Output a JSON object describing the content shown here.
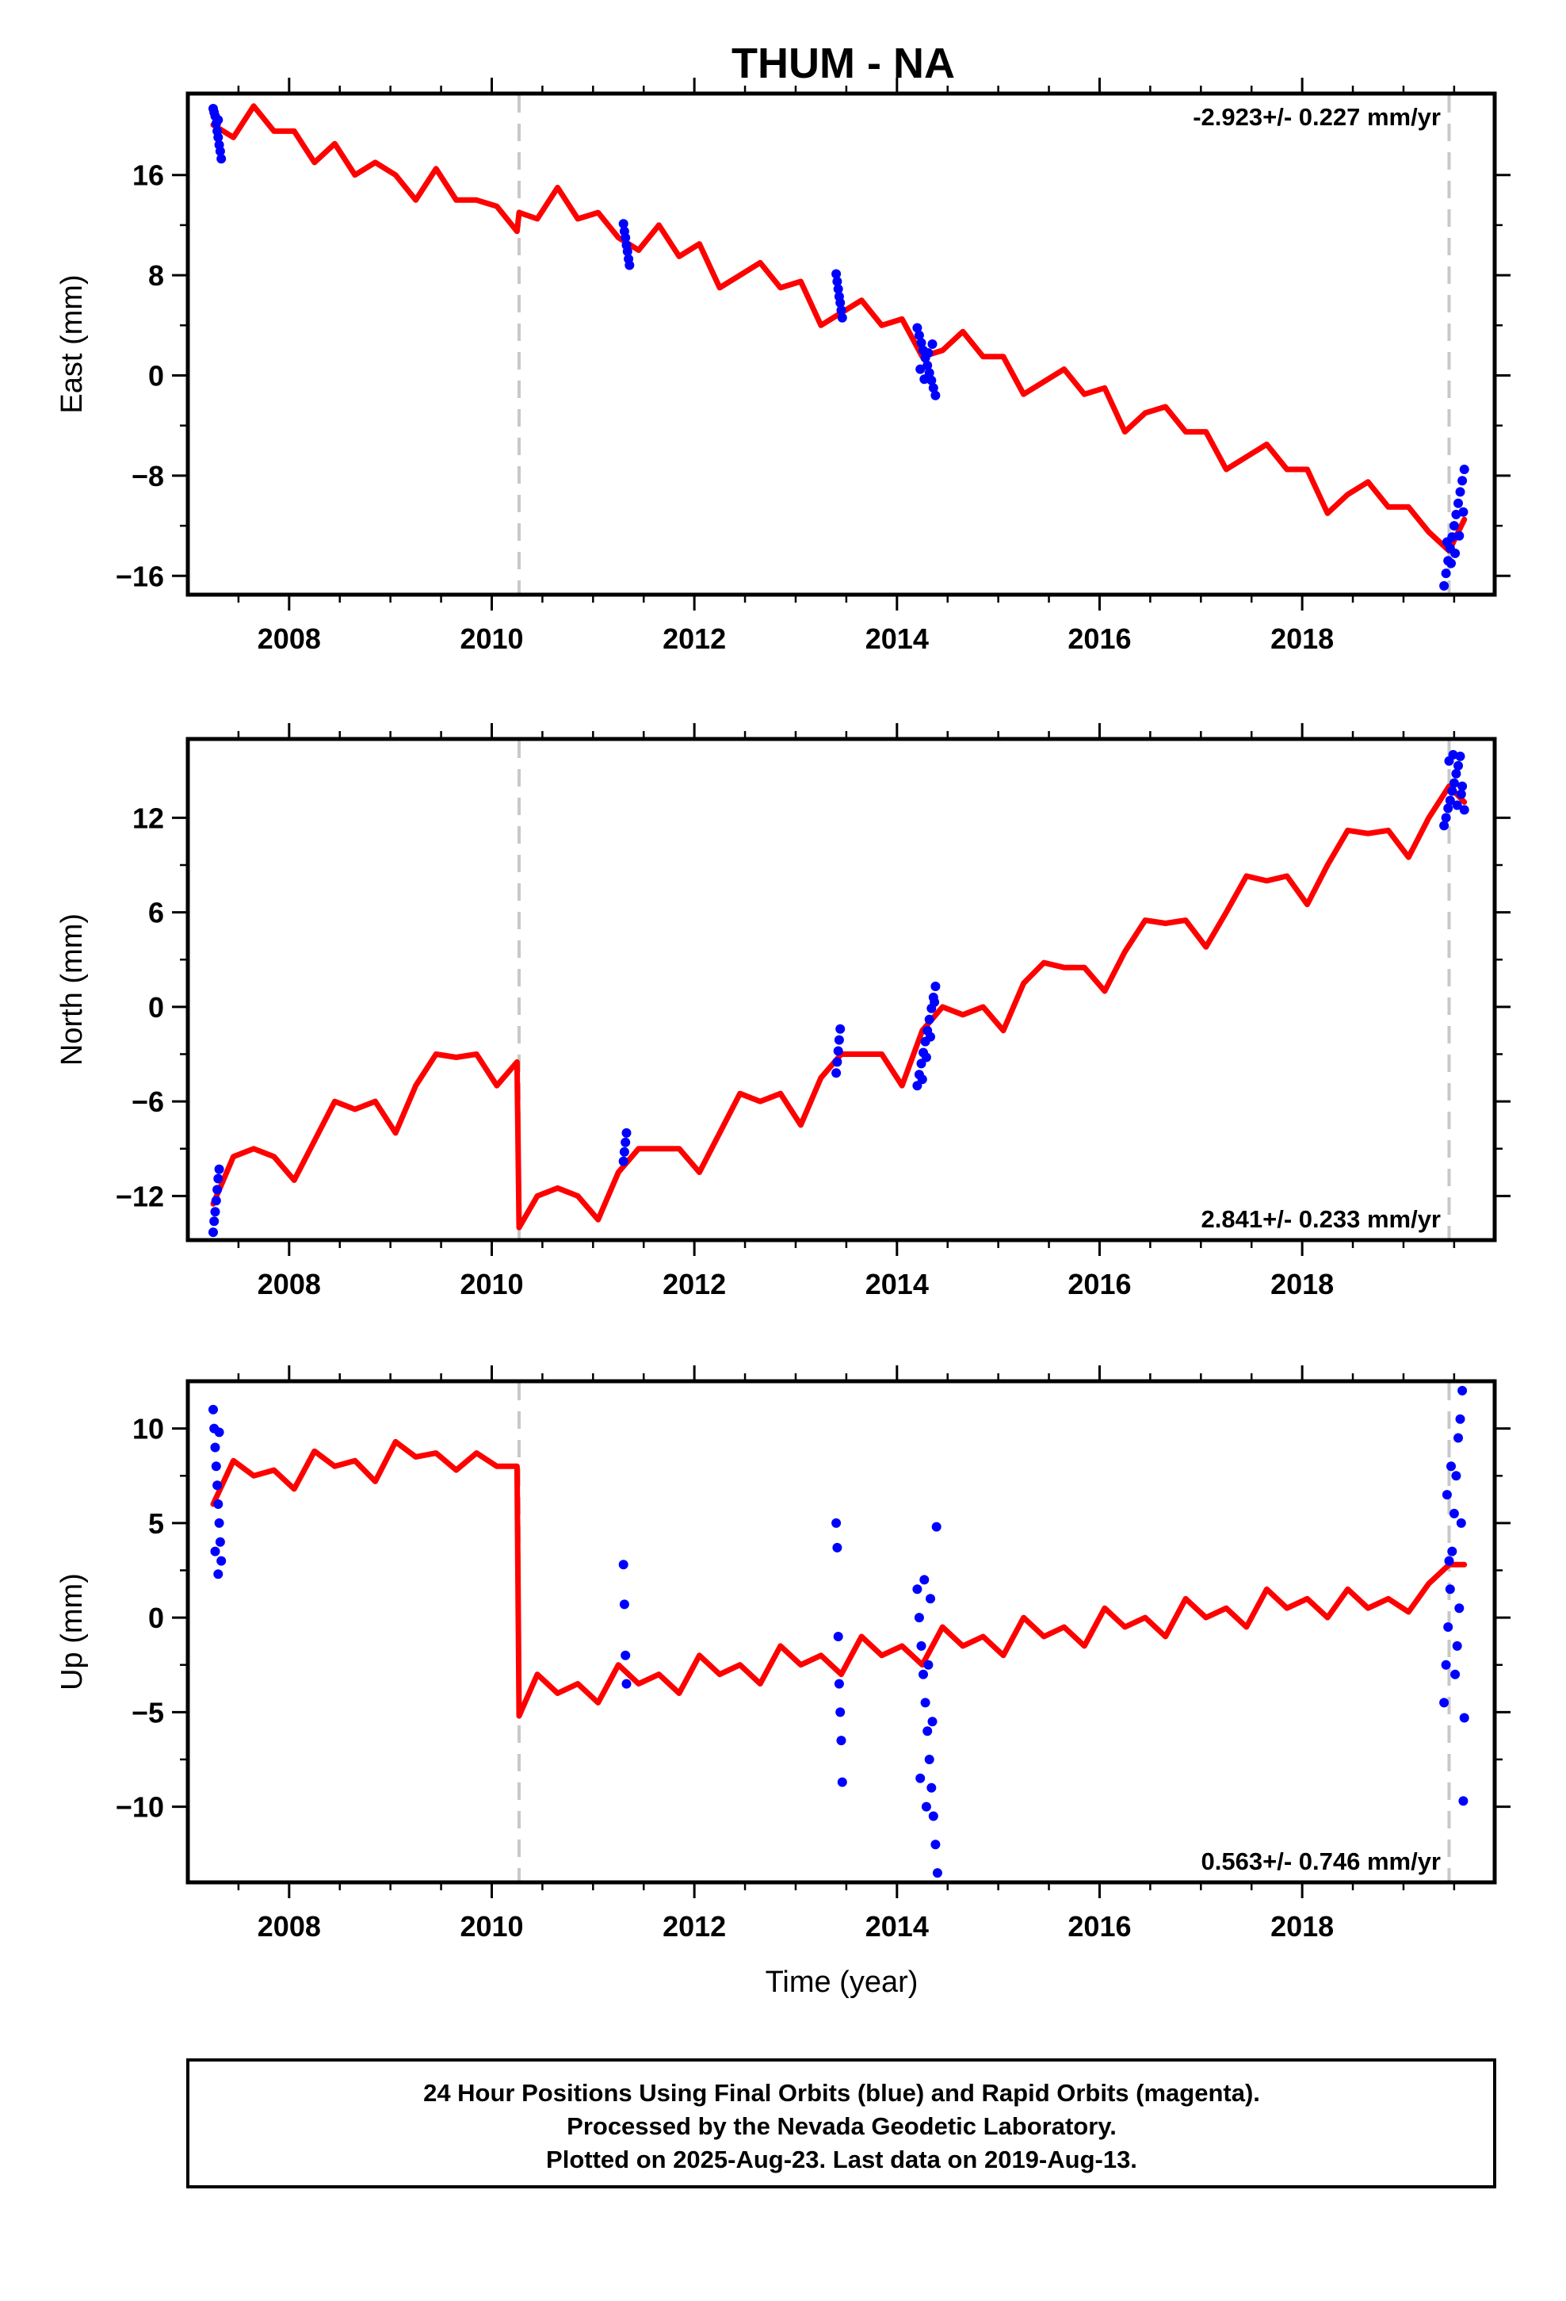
{
  "title": "THUM - NA",
  "colors": {
    "model": "#ff0000",
    "final_orbits": "#0000ff",
    "offset_line": "#c8c8c8",
    "frame": "#000000"
  },
  "footer": {
    "line1": "24 Hour Positions Using Final Orbits (blue) and Rapid Orbits (magenta).",
    "line2": "Processed by the Nevada Geodetic Laboratory.",
    "line3": "Plotted on 2025-Aug-23. Last data on 2019-Aug-13."
  },
  "chart_data": [
    {
      "type": "scatter",
      "component": "east",
      "ylabel": "East (mm)",
      "xlabel": "",
      "rate_label": "-2.923+/- 0.227 mm/yr",
      "rate_position": "top-right",
      "xlim": [
        2007.0,
        2019.9
      ],
      "ylim": [
        -17.5,
        22.5
      ],
      "xticks": [
        2008,
        2010,
        2012,
        2014,
        2016,
        2018
      ],
      "xtick_labels": [
        "2008",
        "2010",
        "2012",
        "2014",
        "2016",
        "2018"
      ],
      "yticks": [
        -16,
        -8,
        0,
        8,
        16
      ],
      "ytick_labels": [
        "−16",
        "−8",
        "0",
        "8",
        "16"
      ],
      "offset_epochs": [
        2010.27,
        2019.45
      ],
      "model": {
        "x": [
          2007.25,
          2007.45,
          2007.65,
          2007.85,
          2008.05,
          2008.25,
          2008.45,
          2008.65,
          2008.85,
          2009.05,
          2009.25,
          2009.45,
          2009.65,
          2009.85,
          2010.05,
          2010.25,
          2010.27,
          2010.45,
          2010.65,
          2010.85,
          2011.05,
          2011.25,
          2011.45,
          2011.65,
          2011.85,
          2012.05,
          2012.25,
          2012.45,
          2012.65,
          2012.85,
          2013.05,
          2013.25,
          2013.45,
          2013.65,
          2013.85,
          2014.05,
          2014.25,
          2014.45,
          2014.65,
          2014.85,
          2015.05,
          2015.25,
          2015.45,
          2015.65,
          2015.85,
          2016.05,
          2016.25,
          2016.45,
          2016.65,
          2016.85,
          2017.05,
          2017.25,
          2017.45,
          2017.65,
          2017.85,
          2018.05,
          2018.25,
          2018.45,
          2018.65,
          2018.85,
          2019.05,
          2019.25,
          2019.45,
          2019.6
        ],
        "y": [
          20.0,
          19.0,
          21.5,
          19.5,
          19.5,
          17.0,
          18.5,
          16.0,
          17.0,
          16.0,
          14.0,
          16.5,
          14.0,
          14.0,
          13.5,
          11.5,
          13.0,
          12.5,
          15.0,
          12.5,
          13.0,
          11.0,
          10.0,
          12.0,
          9.5,
          10.5,
          7.0,
          8.0,
          9.0,
          7.0,
          7.5,
          4.0,
          5.0,
          6.0,
          4.0,
          4.5,
          1.5,
          2.0,
          3.5,
          1.5,
          1.5,
          -1.5,
          -0.5,
          0.5,
          -1.5,
          -1.0,
          -4.5,
          -3.0,
          -2.5,
          -4.5,
          -4.5,
          -7.5,
          -6.5,
          -5.5,
          -7.5,
          -7.5,
          -11.0,
          -9.5,
          -8.5,
          -10.5,
          -10.5,
          -12.5,
          -14.0,
          -11.5
        ]
      },
      "points": [
        [
          2007.25,
          21.3
        ],
        [
          2007.27,
          20.7
        ],
        [
          2007.28,
          20.1
        ],
        [
          2007.29,
          19.5
        ],
        [
          2007.3,
          19.0
        ],
        [
          2007.31,
          18.4
        ],
        [
          2007.32,
          17.9
        ],
        [
          2007.33,
          17.3
        ],
        [
          2007.26,
          21.0
        ],
        [
          2007.3,
          20.4
        ],
        [
          2011.3,
          12.1
        ],
        [
          2011.31,
          11.5
        ],
        [
          2011.32,
          11.0
        ],
        [
          2011.33,
          10.4
        ],
        [
          2011.34,
          9.9
        ],
        [
          2011.35,
          9.3
        ],
        [
          2011.36,
          8.8
        ],
        [
          2013.4,
          8.1
        ],
        [
          2013.41,
          7.5
        ],
        [
          2013.42,
          6.9
        ],
        [
          2013.43,
          6.3
        ],
        [
          2013.44,
          5.8
        ],
        [
          2013.45,
          5.2
        ],
        [
          2013.46,
          4.6
        ],
        [
          2014.2,
          3.8
        ],
        [
          2014.22,
          3.2
        ],
        [
          2014.24,
          2.6
        ],
        [
          2014.26,
          2.0
        ],
        [
          2014.28,
          1.4
        ],
        [
          2014.3,
          0.8
        ],
        [
          2014.32,
          0.2
        ],
        [
          2014.34,
          -0.4
        ],
        [
          2014.36,
          -1.0
        ],
        [
          2014.38,
          -1.6
        ],
        [
          2014.23,
          0.5
        ],
        [
          2014.27,
          -0.3
        ],
        [
          2014.31,
          1.8
        ],
        [
          2014.35,
          2.5
        ],
        [
          2019.4,
          -16.8
        ],
        [
          2019.42,
          -15.8
        ],
        [
          2019.44,
          -14.8
        ],
        [
          2019.46,
          -13.8
        ],
        [
          2019.48,
          -12.9
        ],
        [
          2019.5,
          -12.0
        ],
        [
          2019.52,
          -11.1
        ],
        [
          2019.54,
          -10.2
        ],
        [
          2019.56,
          -9.3
        ],
        [
          2019.58,
          -8.4
        ],
        [
          2019.6,
          -7.5
        ],
        [
          2019.43,
          -13.3
        ],
        [
          2019.47,
          -15.0
        ],
        [
          2019.51,
          -14.2
        ],
        [
          2019.55,
          -12.8
        ],
        [
          2019.59,
          -10.9
        ]
      ]
    },
    {
      "type": "scatter",
      "component": "north",
      "ylabel": "North (mm)",
      "xlabel": "",
      "rate_label": "2.841+/- 0.233 mm/yr",
      "rate_position": "bottom-right",
      "xlim": [
        2007.0,
        2019.9
      ],
      "ylim": [
        -14.8,
        17.0
      ],
      "xticks": [
        2008,
        2010,
        2012,
        2014,
        2016,
        2018
      ],
      "xtick_labels": [
        "2008",
        "2010",
        "2012",
        "2014",
        "2016",
        "2018"
      ],
      "yticks": [
        -12,
        -6,
        0,
        6,
        12
      ],
      "ytick_labels": [
        "−12",
        "−6",
        "0",
        "6",
        "12"
      ],
      "offset_epochs": [
        2010.27,
        2019.45
      ],
      "model": {
        "x": [
          2007.25,
          2007.45,
          2007.65,
          2007.85,
          2008.05,
          2008.25,
          2008.45,
          2008.65,
          2008.85,
          2009.05,
          2009.25,
          2009.45,
          2009.65,
          2009.85,
          2010.05,
          2010.25,
          2010.27,
          2010.45,
          2010.65,
          2010.85,
          2011.05,
          2011.25,
          2011.45,
          2011.65,
          2011.85,
          2012.05,
          2012.25,
          2012.45,
          2012.65,
          2012.85,
          2013.05,
          2013.25,
          2013.45,
          2013.65,
          2013.85,
          2014.05,
          2014.25,
          2014.45,
          2014.65,
          2014.85,
          2015.05,
          2015.25,
          2015.45,
          2015.65,
          2015.85,
          2016.05,
          2016.25,
          2016.45,
          2016.65,
          2016.85,
          2017.05,
          2017.25,
          2017.45,
          2017.65,
          2017.85,
          2018.05,
          2018.25,
          2018.45,
          2018.65,
          2018.85,
          2019.05,
          2019.25,
          2019.45,
          2019.6
        ],
        "y": [
          -12.5,
          -9.5,
          -9.0,
          -9.5,
          -11.0,
          -8.5,
          -6.0,
          -6.5,
          -6.0,
          -8.0,
          -5.0,
          -3.0,
          -3.2,
          -3.0,
          -5.0,
          -3.5,
          -14.0,
          -12.0,
          -11.5,
          -12.0,
          -13.5,
          -10.5,
          -9.0,
          -9.0,
          -9.0,
          -10.5,
          -8.0,
          -5.5,
          -6.0,
          -5.5,
          -7.5,
          -4.5,
          -3.0,
          -3.0,
          -3.0,
          -5.0,
          -1.5,
          0.0,
          -0.5,
          0.0,
          -1.5,
          1.5,
          2.8,
          2.5,
          2.5,
          1.0,
          3.5,
          5.5,
          5.3,
          5.5,
          3.8,
          6.0,
          8.3,
          8.0,
          8.3,
          6.5,
          9.0,
          11.2,
          11.0,
          11.2,
          9.5,
          12.0,
          14.0,
          13.0
        ]
      },
      "points": [
        [
          2007.25,
          -14.3
        ],
        [
          2007.26,
          -13.6
        ],
        [
          2007.27,
          -13.0
        ],
        [
          2007.28,
          -12.3
        ],
        [
          2007.29,
          -11.6
        ],
        [
          2007.3,
          -10.9
        ],
        [
          2007.31,
          -10.3
        ],
        [
          2011.3,
          -9.8
        ],
        [
          2011.31,
          -9.2
        ],
        [
          2011.32,
          -8.6
        ],
        [
          2011.33,
          -8.0
        ],
        [
          2013.4,
          -4.2
        ],
        [
          2013.41,
          -3.5
        ],
        [
          2013.42,
          -2.8
        ],
        [
          2013.43,
          -2.1
        ],
        [
          2013.44,
          -1.4
        ],
        [
          2014.2,
          -5.0
        ],
        [
          2014.22,
          -4.3
        ],
        [
          2014.24,
          -3.6
        ],
        [
          2014.26,
          -2.9
        ],
        [
          2014.28,
          -2.2
        ],
        [
          2014.3,
          -1.5
        ],
        [
          2014.32,
          -0.8
        ],
        [
          2014.34,
          -0.1
        ],
        [
          2014.36,
          0.6
        ],
        [
          2014.38,
          1.3
        ],
        [
          2014.25,
          -4.6
        ],
        [
          2014.29,
          -3.2
        ],
        [
          2014.33,
          -1.9
        ],
        [
          2014.37,
          0.3
        ],
        [
          2019.4,
          11.5
        ],
        [
          2019.42,
          12.0
        ],
        [
          2019.44,
          12.6
        ],
        [
          2019.46,
          13.1
        ],
        [
          2019.48,
          13.7
        ],
        [
          2019.5,
          14.2
        ],
        [
          2019.52,
          14.8
        ],
        [
          2019.54,
          15.3
        ],
        [
          2019.56,
          15.9
        ],
        [
          2019.58,
          14.0
        ],
        [
          2019.6,
          12.5
        ],
        [
          2019.45,
          15.6
        ],
        [
          2019.49,
          16.0
        ],
        [
          2019.53,
          12.8
        ],
        [
          2019.57,
          13.5
        ]
      ]
    },
    {
      "type": "scatter",
      "component": "up",
      "ylabel": "Up (mm)",
      "xlabel": "Time (year)",
      "rate_label": "0.563+/- 0.746 mm/yr",
      "rate_position": "bottom-right",
      "xlim": [
        2007.0,
        2019.9
      ],
      "ylim": [
        -14.0,
        12.5
      ],
      "xticks": [
        2008,
        2010,
        2012,
        2014,
        2016,
        2018
      ],
      "xtick_labels": [
        "2008",
        "2010",
        "2012",
        "2014",
        "2016",
        "2018"
      ],
      "yticks": [
        -10,
        -5,
        0,
        5,
        10
      ],
      "ytick_labels": [
        "−10",
        "−5",
        "0",
        "5",
        "10"
      ],
      "offset_epochs": [
        2010.27,
        2019.45
      ],
      "model": {
        "x": [
          2007.25,
          2007.45,
          2007.65,
          2007.85,
          2008.05,
          2008.25,
          2008.45,
          2008.65,
          2008.85,
          2009.05,
          2009.25,
          2009.45,
          2009.65,
          2009.85,
          2010.05,
          2010.25,
          2010.27,
          2010.45,
          2010.65,
          2010.85,
          2011.05,
          2011.25,
          2011.45,
          2011.65,
          2011.85,
          2012.05,
          2012.25,
          2012.45,
          2012.65,
          2012.85,
          2013.05,
          2013.25,
          2013.45,
          2013.65,
          2013.85,
          2014.05,
          2014.25,
          2014.45,
          2014.65,
          2014.85,
          2015.05,
          2015.25,
          2015.45,
          2015.65,
          2015.85,
          2016.05,
          2016.25,
          2016.45,
          2016.65,
          2016.85,
          2017.05,
          2017.25,
          2017.45,
          2017.65,
          2017.85,
          2018.05,
          2018.25,
          2018.45,
          2018.65,
          2018.85,
          2019.05,
          2019.25,
          2019.45,
          2019.6
        ],
        "y": [
          6.0,
          8.3,
          7.5,
          7.8,
          6.8,
          8.8,
          8.0,
          8.3,
          7.2,
          9.3,
          8.5,
          8.7,
          7.8,
          8.7,
          8.0,
          8.0,
          -5.2,
          -3.0,
          -4.0,
          -3.5,
          -4.5,
          -2.5,
          -3.5,
          -3.0,
          -4.0,
          -2.0,
          -3.0,
          -2.5,
          -3.5,
          -1.5,
          -2.5,
          -2.0,
          -3.0,
          -1.0,
          -2.0,
          -1.5,
          -2.5,
          -0.5,
          -1.5,
          -1.0,
          -2.0,
          0.0,
          -1.0,
          -0.5,
          -1.5,
          0.5,
          -0.5,
          0.0,
          -1.0,
          1.0,
          0.0,
          0.5,
          -0.5,
          1.5,
          0.5,
          1.0,
          0.0,
          1.5,
          0.5,
          1.0,
          0.3,
          1.8,
          2.8,
          2.8
        ]
      },
      "points": [
        [
          2007.25,
          11.0
        ],
        [
          2007.26,
          10.0
        ],
        [
          2007.27,
          9.0
        ],
        [
          2007.28,
          8.0
        ],
        [
          2007.29,
          7.0
        ],
        [
          2007.3,
          6.0
        ],
        [
          2007.31,
          5.0
        ],
        [
          2007.32,
          4.0
        ],
        [
          2007.33,
          3.0
        ],
        [
          2007.3,
          2.3
        ],
        [
          2007.27,
          3.5
        ],
        [
          2007.31,
          9.8
        ],
        [
          2011.3,
          2.8
        ],
        [
          2011.31,
          0.7
        ],
        [
          2011.32,
          -2.0
        ],
        [
          2011.33,
          -3.5
        ],
        [
          2013.4,
          5.0
        ],
        [
          2013.41,
          3.7
        ],
        [
          2013.42,
          -1.0
        ],
        [
          2013.43,
          -3.5
        ],
        [
          2013.44,
          -5.0
        ],
        [
          2013.45,
          -6.5
        ],
        [
          2013.46,
          -8.7
        ],
        [
          2014.2,
          1.5
        ],
        [
          2014.22,
          0.0
        ],
        [
          2014.24,
          -1.5
        ],
        [
          2014.26,
          -3.0
        ],
        [
          2014.28,
          -4.5
        ],
        [
          2014.3,
          -6.0
        ],
        [
          2014.32,
          -7.5
        ],
        [
          2014.34,
          -9.0
        ],
        [
          2014.36,
          -10.5
        ],
        [
          2014.38,
          -12.0
        ],
        [
          2014.4,
          -13.5
        ],
        [
          2014.23,
          -8.5
        ],
        [
          2014.27,
          2.0
        ],
        [
          2014.31,
          -2.5
        ],
        [
          2014.35,
          -5.5
        ],
        [
          2014.39,
          4.8
        ],
        [
          2014.29,
          -10.0
        ],
        [
          2014.33,
          1.0
        ],
        [
          2019.4,
          -4.5
        ],
        [
          2019.42,
          -2.5
        ],
        [
          2019.44,
          -0.5
        ],
        [
          2019.46,
          1.5
        ],
        [
          2019.48,
          3.5
        ],
        [
          2019.5,
          5.5
        ],
        [
          2019.52,
          7.5
        ],
        [
          2019.54,
          9.5
        ],
        [
          2019.56,
          10.5
        ],
        [
          2019.58,
          12.0
        ],
        [
          2019.6,
          -5.3
        ],
        [
          2019.43,
          6.5
        ],
        [
          2019.47,
          8.0
        ],
        [
          2019.51,
          -3.0
        ],
        [
          2019.55,
          0.5
        ],
        [
          2019.59,
          -9.7
        ],
        [
          2019.45,
          3.0
        ],
        [
          2019.53,
          -1.5
        ],
        [
          2019.57,
          5.0
        ]
      ]
    }
  ]
}
